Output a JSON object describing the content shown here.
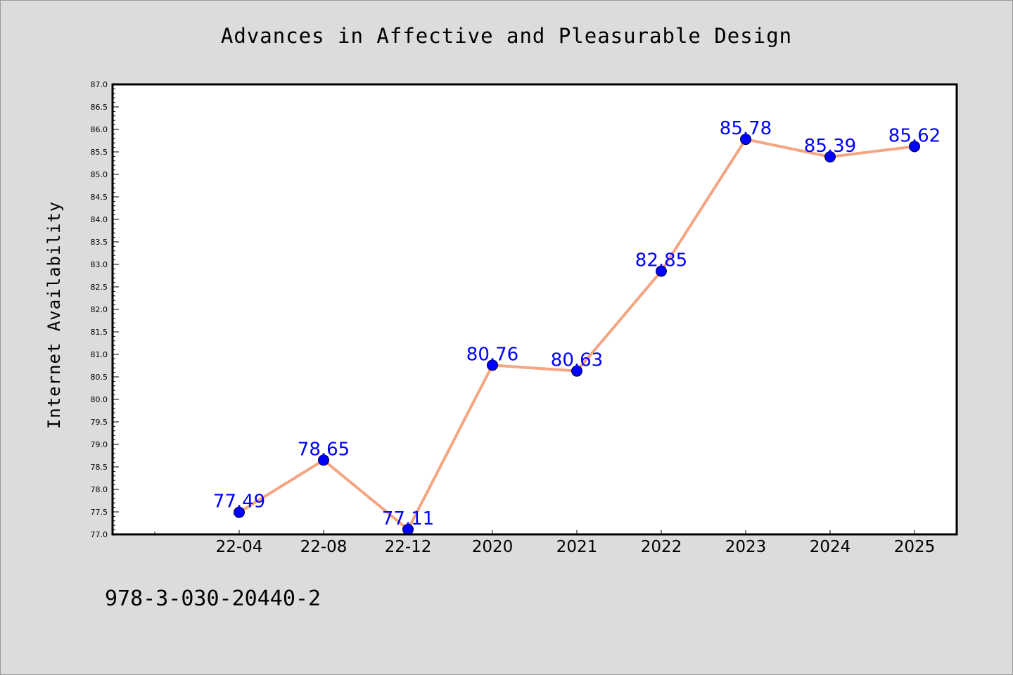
{
  "chart_data": {
    "type": "line",
    "title": "Advances in Affective and Pleasurable Design",
    "xlabel": "",
    "ylabel": "Internet Availability",
    "categories": [
      "22-04",
      "22-08",
      "22-12",
      "2020",
      "2021",
      "2022",
      "2023",
      "2024",
      "2025"
    ],
    "series": [
      {
        "values": [
          77.49,
          78.65,
          77.11,
          80.76,
          80.63,
          82.85,
          85.78,
          85.39,
          85.62
        ]
      }
    ],
    "data_labels": [
      "77.49",
      "78.65",
      "77.11",
      "80.76",
      "80.63",
      "82.85",
      "85.78",
      "85.39",
      "85.62"
    ],
    "ylim": [
      77.0,
      87.0
    ],
    "y_ticks": [
      "77.0",
      "77.5",
      "78.0",
      "78.5",
      "79.0",
      "79.5",
      "80.0",
      "80.5",
      "81.0",
      "81.5",
      "82.0",
      "82.5",
      "83.0",
      "83.5",
      "84.0",
      "84.5",
      "85.0",
      "85.5",
      "86.0",
      "86.5",
      "87.0"
    ],
    "grid": false,
    "legend": "none",
    "colors": {
      "line": "#f4a582",
      "marker": "#0000ff",
      "label": "#0000ff",
      "background": "#dcdcdc",
      "plot_area": "#ffffff"
    }
  },
  "footer": {
    "isbn": "978-3-030-20440-2"
  }
}
